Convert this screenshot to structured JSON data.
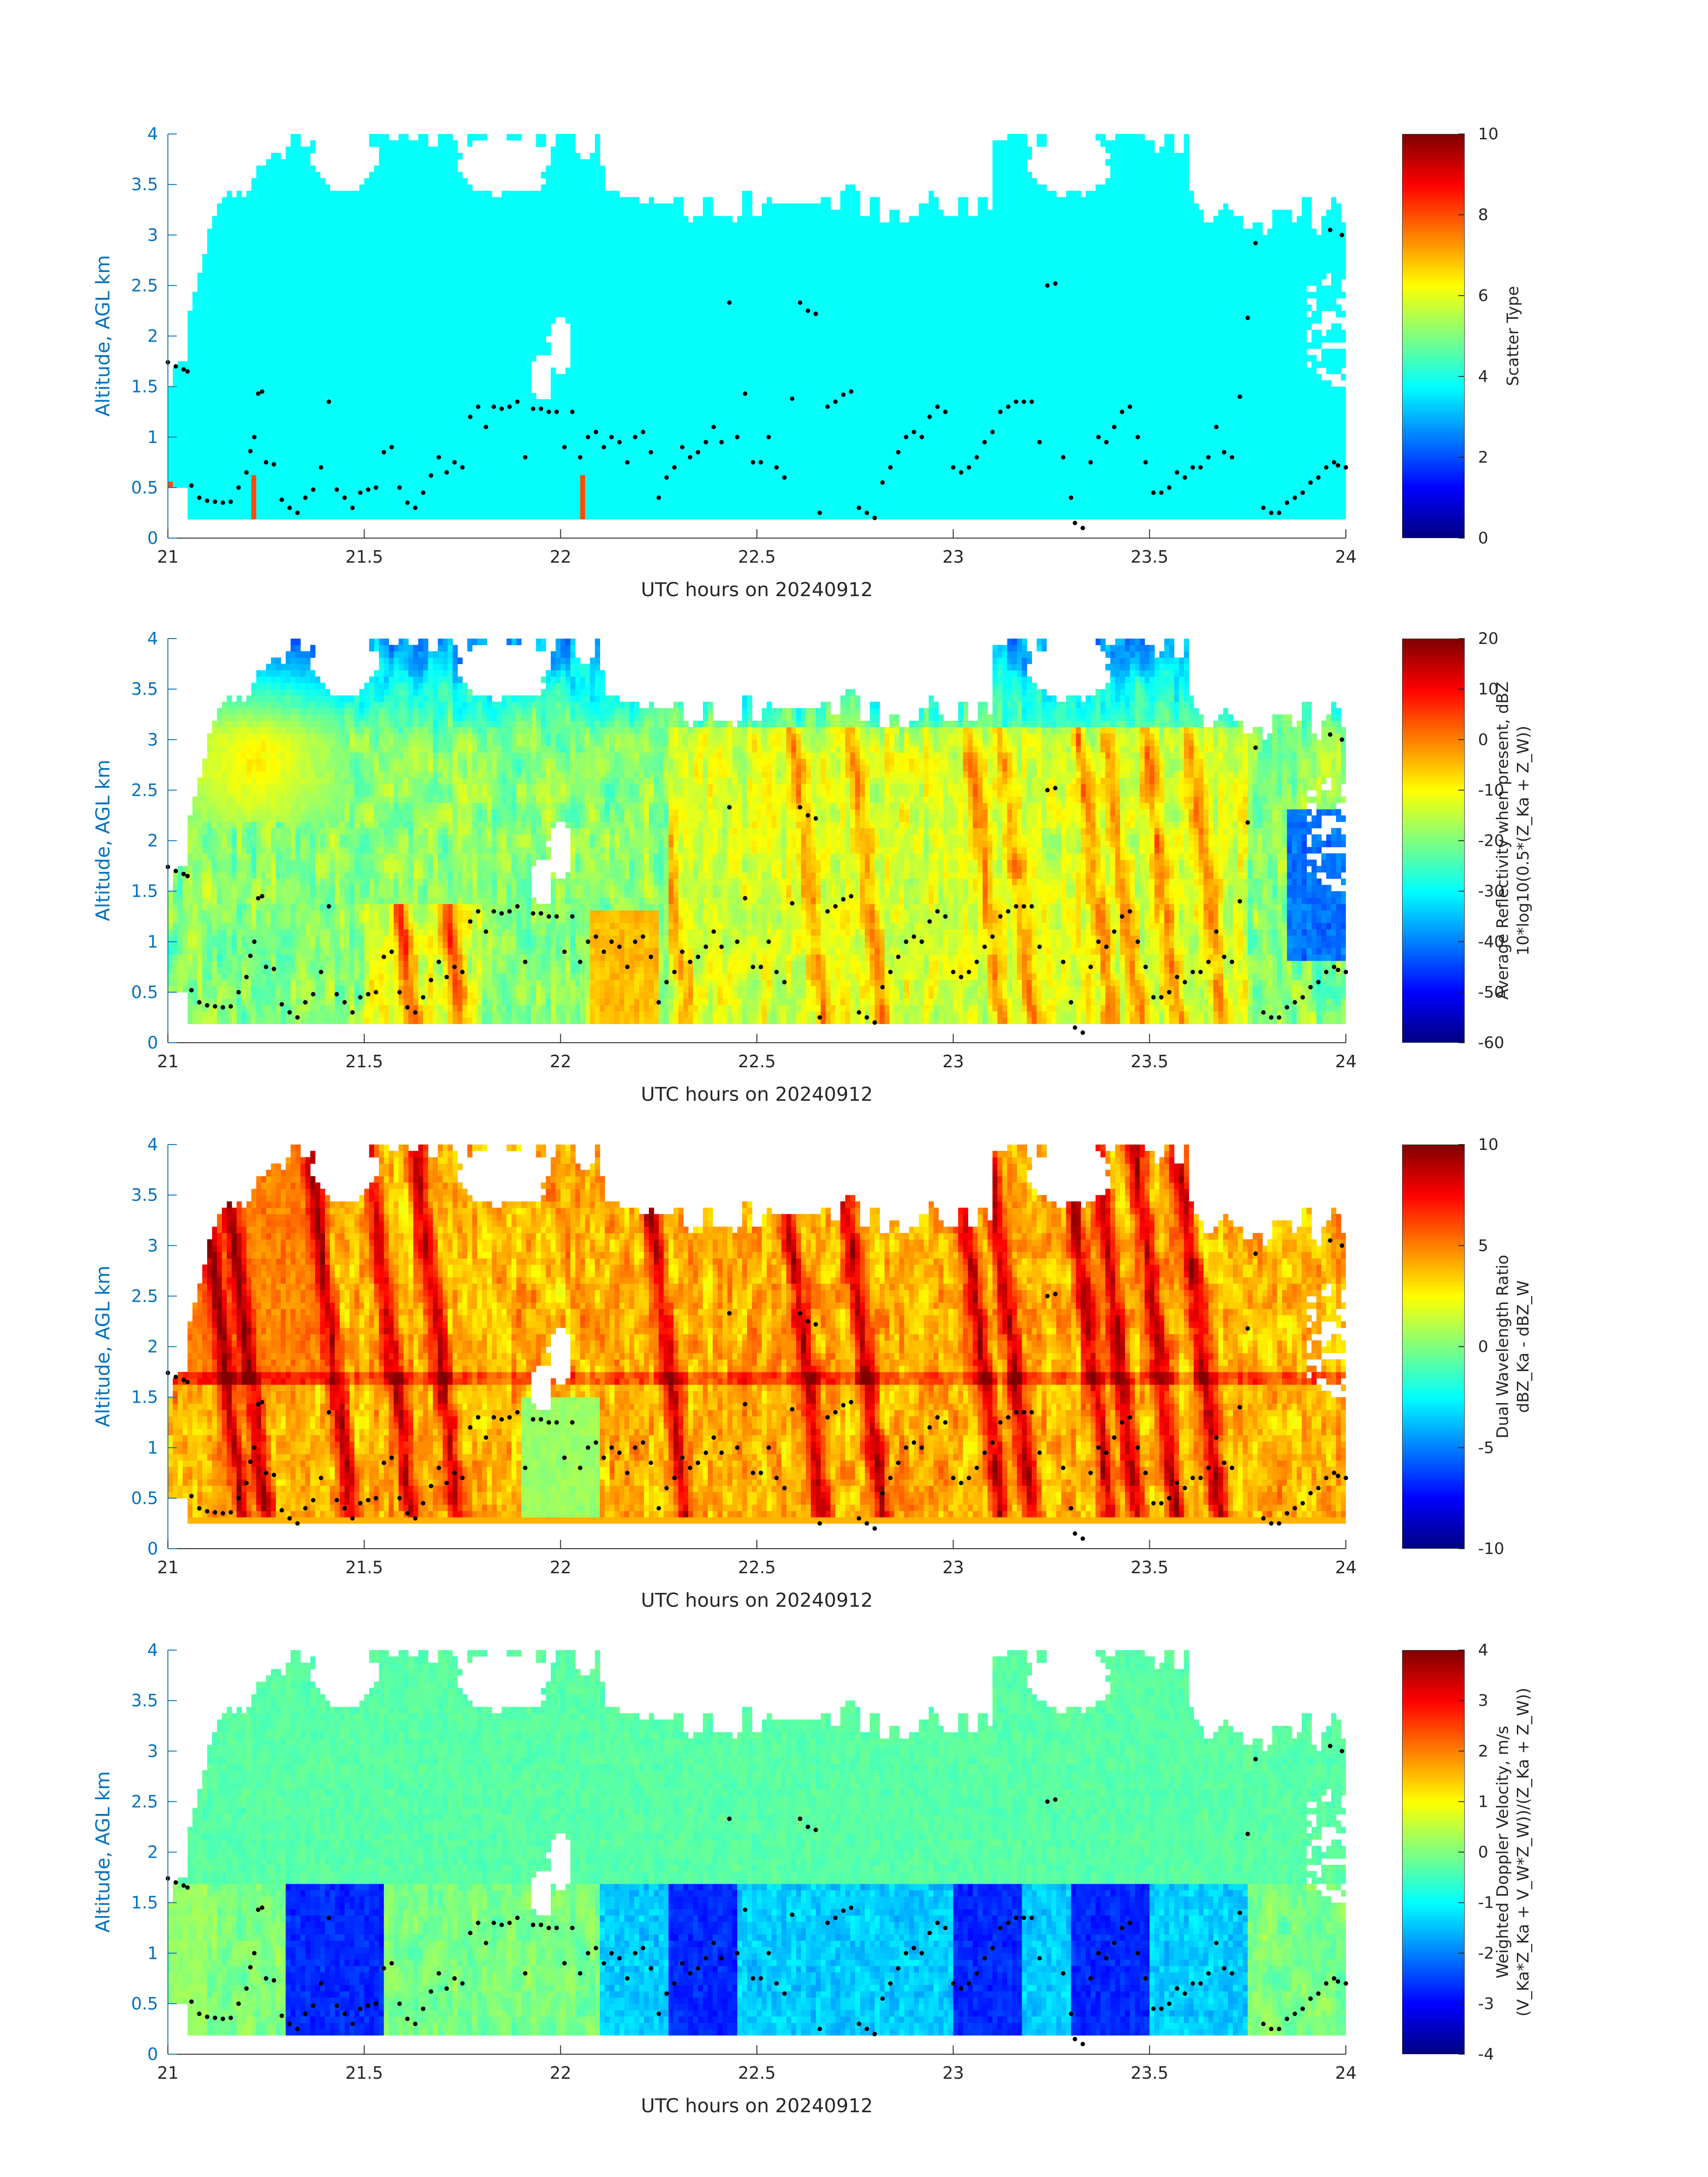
{
  "colors": {
    "yaxis": "#0072BD",
    "text": "#262626",
    "marker": "#000000",
    "missing": "#ffffff"
  },
  "chart_data": [
    {
      "type": "heatmap",
      "id": "scatter-type",
      "xlabel": "UTC hours on 20240912",
      "ylabel": "Altitude, AGL km",
      "xlim": [
        21,
        24
      ],
      "ylim": [
        0,
        4
      ],
      "xticks": [
        "21",
        "21.5",
        "22",
        "22.5",
        "23",
        "23.5",
        "24"
      ],
      "yticks": [
        "0",
        "0.5",
        "1",
        "1.5",
        "2",
        "2.5",
        "3",
        "3.5",
        "4"
      ],
      "colorbar": {
        "label_lines": [
          "Scatter Type"
        ],
        "clim": [
          0,
          10
        ],
        "ticks": [
          "0",
          "2",
          "4",
          "6",
          "8",
          "10"
        ]
      },
      "field": "scatter"
    },
    {
      "type": "heatmap",
      "id": "avg-reflectivity",
      "xlabel": "UTC hours on 20240912",
      "ylabel": "Altitude, AGL km",
      "xlim": [
        21,
        24
      ],
      "ylim": [
        0,
        4
      ],
      "xticks": [
        "21",
        "21.5",
        "22",
        "22.5",
        "23",
        "23.5",
        "24"
      ],
      "yticks": [
        "0",
        "0.5",
        "1",
        "1.5",
        "2",
        "2.5",
        "3",
        "3.5",
        "4"
      ],
      "colorbar": {
        "label_lines": [
          "Average Reflectivity when present, dBZ",
          "10*log10(0.5*(Z_Ka + Z_W))"
        ],
        "clim": [
          -60,
          20
        ],
        "ticks": [
          "-60",
          "-50",
          "-40",
          "-30",
          "-20",
          "-10",
          "0",
          "10",
          "20"
        ]
      },
      "field": "reflectivity"
    },
    {
      "type": "heatmap",
      "id": "dual-wavelength-ratio",
      "xlabel": "UTC hours on 20240912",
      "ylabel": "Altitude, AGL km",
      "xlim": [
        21,
        24
      ],
      "ylim": [
        0,
        4
      ],
      "xticks": [
        "21",
        "21.5",
        "22",
        "22.5",
        "23",
        "23.5",
        "24"
      ],
      "yticks": [
        "0",
        "0.5",
        "1",
        "1.5",
        "2",
        "2.5",
        "3",
        "3.5",
        "4"
      ],
      "colorbar": {
        "label_lines": [
          "Dual Wavelength Ratio",
          "dBZ_Ka - dBZ_W"
        ],
        "clim": [
          -10,
          10
        ],
        "ticks": [
          "-10",
          "-5",
          "0",
          "5",
          "10"
        ]
      },
      "field": "dwr"
    },
    {
      "type": "heatmap",
      "id": "doppler-velocity",
      "xlabel": "UTC hours on 20240912",
      "ylabel": "Altitude, AGL km",
      "xlim": [
        21,
        24
      ],
      "ylim": [
        0,
        4
      ],
      "xticks": [
        "21",
        "21.5",
        "22",
        "22.5",
        "23",
        "23.5",
        "24"
      ],
      "yticks": [
        "0",
        "0.5",
        "1",
        "1.5",
        "2",
        "2.5",
        "3",
        "3.5",
        "4"
      ],
      "colorbar": {
        "label_lines": [
          "Weighted Doppler Velocity, m/s",
          "(V_Ka*Z_Ka + V_W*Z_W))/(Z_Ka + Z_W))"
        ],
        "clim": [
          -4,
          4
        ],
        "ticks": [
          "-4",
          "-3",
          "-2",
          "-1",
          "0",
          "1",
          "2",
          "3",
          "4"
        ]
      },
      "field": "velocity"
    }
  ],
  "cloud_base_points": [
    [
      21.0,
      1.74
    ],
    [
      21.02,
      1.7
    ],
    [
      21.04,
      1.67
    ],
    [
      21.05,
      1.65
    ],
    [
      21.06,
      0.52
    ],
    [
      21.08,
      0.4
    ],
    [
      21.1,
      0.37
    ],
    [
      21.12,
      0.36
    ],
    [
      21.14,
      0.35
    ],
    [
      21.16,
      0.36
    ],
    [
      21.18,
      0.5
    ],
    [
      21.2,
      0.65
    ],
    [
      21.21,
      0.86
    ],
    [
      21.22,
      1.0
    ],
    [
      21.23,
      1.43
    ],
    [
      21.24,
      1.45
    ],
    [
      21.25,
      0.75
    ],
    [
      21.27,
      0.73
    ],
    [
      21.29,
      0.38
    ],
    [
      21.31,
      0.3
    ],
    [
      21.33,
      0.25
    ],
    [
      21.35,
      0.4
    ],
    [
      21.37,
      0.48
    ],
    [
      21.39,
      0.7
    ],
    [
      21.41,
      1.35
    ],
    [
      21.43,
      0.48
    ],
    [
      21.45,
      0.4
    ],
    [
      21.47,
      0.3
    ],
    [
      21.49,
      0.45
    ],
    [
      21.51,
      0.48
    ],
    [
      21.53,
      0.5
    ],
    [
      21.55,
      0.85
    ],
    [
      21.57,
      0.9
    ],
    [
      21.59,
      0.5
    ],
    [
      21.61,
      0.35
    ],
    [
      21.63,
      0.3
    ],
    [
      21.65,
      0.45
    ],
    [
      21.67,
      0.62
    ],
    [
      21.69,
      0.8
    ],
    [
      21.71,
      0.65
    ],
    [
      21.73,
      0.75
    ],
    [
      21.75,
      0.7
    ],
    [
      21.77,
      1.2
    ],
    [
      21.79,
      1.3
    ],
    [
      21.81,
      1.1
    ],
    [
      21.83,
      1.3
    ],
    [
      21.85,
      1.28
    ],
    [
      21.87,
      1.3
    ],
    [
      21.89,
      1.35
    ],
    [
      21.91,
      0.8
    ],
    [
      21.93,
      1.28
    ],
    [
      21.95,
      1.28
    ],
    [
      21.97,
      1.25
    ],
    [
      21.99,
      1.25
    ],
    [
      22.01,
      0.9
    ],
    [
      22.03,
      1.25
    ],
    [
      22.05,
      0.8
    ],
    [
      22.07,
      1.0
    ],
    [
      22.09,
      1.05
    ],
    [
      22.11,
      0.9
    ],
    [
      22.13,
      1.0
    ],
    [
      22.15,
      0.95
    ],
    [
      22.17,
      0.75
    ],
    [
      22.19,
      1.0
    ],
    [
      22.21,
      1.05
    ],
    [
      22.23,
      0.85
    ],
    [
      22.25,
      0.4
    ],
    [
      22.27,
      0.6
    ],
    [
      22.29,
      0.7
    ],
    [
      22.31,
      0.9
    ],
    [
      22.33,
      0.8
    ],
    [
      22.35,
      0.85
    ],
    [
      22.37,
      0.95
    ],
    [
      22.39,
      1.1
    ],
    [
      22.41,
      0.95
    ],
    [
      22.43,
      2.33
    ],
    [
      22.45,
      1.0
    ],
    [
      22.47,
      1.43
    ],
    [
      22.49,
      0.75
    ],
    [
      22.51,
      0.75
    ],
    [
      22.53,
      1.0
    ],
    [
      22.55,
      0.7
    ],
    [
      22.57,
      0.6
    ],
    [
      22.59,
      1.38
    ],
    [
      22.61,
      2.33
    ],
    [
      22.63,
      2.25
    ],
    [
      22.65,
      2.22
    ],
    [
      22.66,
      0.25
    ],
    [
      22.68,
      1.3
    ],
    [
      22.7,
      1.35
    ],
    [
      22.72,
      1.42
    ],
    [
      22.74,
      1.45
    ],
    [
      22.76,
      0.3
    ],
    [
      22.78,
      0.25
    ],
    [
      22.8,
      0.2
    ],
    [
      22.82,
      0.55
    ],
    [
      22.84,
      0.7
    ],
    [
      22.86,
      0.85
    ],
    [
      22.88,
      1.0
    ],
    [
      22.9,
      1.05
    ],
    [
      22.92,
      1.0
    ],
    [
      22.94,
      1.2
    ],
    [
      22.96,
      1.3
    ],
    [
      22.98,
      1.25
    ],
    [
      23.0,
      0.7
    ],
    [
      23.02,
      0.65
    ],
    [
      23.04,
      0.7
    ],
    [
      23.06,
      0.8
    ],
    [
      23.08,
      0.95
    ],
    [
      23.1,
      1.05
    ],
    [
      23.12,
      1.25
    ],
    [
      23.14,
      1.3
    ],
    [
      23.16,
      1.35
    ],
    [
      23.18,
      1.35
    ],
    [
      23.2,
      1.35
    ],
    [
      23.22,
      0.95
    ],
    [
      23.24,
      2.5
    ],
    [
      23.26,
      2.52
    ],
    [
      23.28,
      0.8
    ],
    [
      23.3,
      0.4
    ],
    [
      23.31,
      0.15
    ],
    [
      23.33,
      0.1
    ],
    [
      23.35,
      0.75
    ],
    [
      23.37,
      1.0
    ],
    [
      23.39,
      0.95
    ],
    [
      23.41,
      1.1
    ],
    [
      23.43,
      1.25
    ],
    [
      23.45,
      1.3
    ],
    [
      23.47,
      1.0
    ],
    [
      23.49,
      0.75
    ],
    [
      23.51,
      0.45
    ],
    [
      23.53,
      0.45
    ],
    [
      23.55,
      0.5
    ],
    [
      23.57,
      0.65
    ],
    [
      23.59,
      0.6
    ],
    [
      23.61,
      0.7
    ],
    [
      23.63,
      0.7
    ],
    [
      23.65,
      0.8
    ],
    [
      23.67,
      1.1
    ],
    [
      23.69,
      0.85
    ],
    [
      23.71,
      0.8
    ],
    [
      23.73,
      1.4
    ],
    [
      23.75,
      2.18
    ],
    [
      23.77,
      2.92
    ],
    [
      23.79,
      0.3
    ],
    [
      23.81,
      0.25
    ],
    [
      23.83,
      0.25
    ],
    [
      23.85,
      0.35
    ],
    [
      23.87,
      0.4
    ],
    [
      23.89,
      0.45
    ],
    [
      23.91,
      0.55
    ],
    [
      23.93,
      0.6
    ],
    [
      23.95,
      0.7
    ],
    [
      23.96,
      3.05
    ],
    [
      23.97,
      0.75
    ],
    [
      23.98,
      0.72
    ],
    [
      23.99,
      3.0
    ],
    [
      24.0,
      0.7
    ]
  ]
}
